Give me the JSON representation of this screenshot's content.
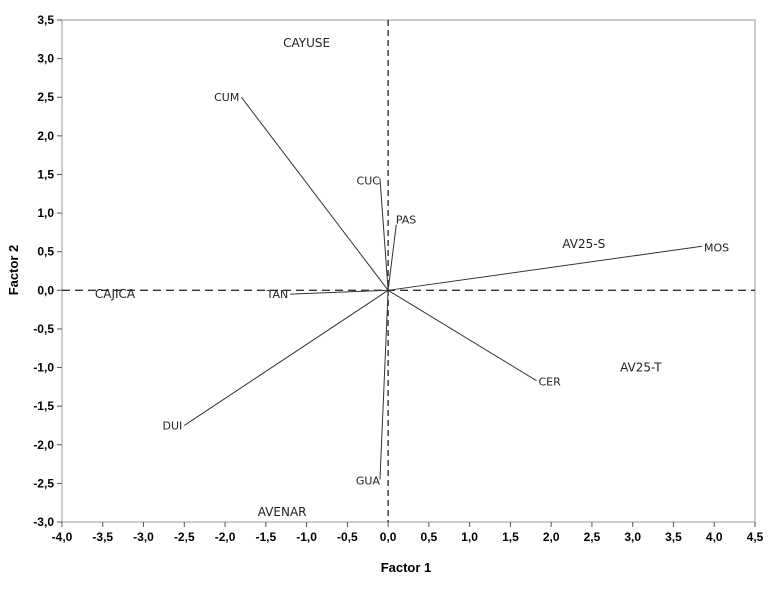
{
  "chart_data": {
    "type": "scatter",
    "title": "",
    "xlabel": "Factor 1",
    "ylabel": "Factor 2",
    "xlim": [
      -4.0,
      4.5
    ],
    "ylim": [
      -3.0,
      3.5
    ],
    "xticks": [
      -4.0,
      -3.5,
      -3.0,
      -2.5,
      -2.0,
      -1.5,
      -1.0,
      -0.5,
      0.0,
      0.5,
      1.0,
      1.5,
      2.0,
      2.5,
      3.0,
      3.5,
      4.0,
      4.5
    ],
    "xtick_labels": [
      "-4,0",
      "-3,5",
      "-3,0",
      "-2,5",
      "-2,0",
      "-1,5",
      "-1,0",
      "-0,5",
      "0,0",
      "0,5",
      "1,0",
      "1,5",
      "2,0",
      "2,5",
      "3,0",
      "3,5",
      "4,0",
      "4,5"
    ],
    "yticks": [
      3.5,
      3.0,
      2.5,
      2.0,
      1.5,
      1.0,
      0.5,
      0.0,
      -0.5,
      -1.0,
      -1.5,
      -2.0,
      -2.5,
      -3.0
    ],
    "ytick_labels": [
      "3,5",
      "3,0",
      "2,5",
      "2,0",
      "1,5",
      "1,0",
      "0,5",
      "0,0",
      "-0,5",
      "-1,0",
      "-1,5",
      "-2,0",
      "-2,5",
      "-3,0"
    ],
    "reference_lines": {
      "x": 0,
      "y": 0,
      "style": "dashed"
    },
    "grid": false,
    "vectors": [
      {
        "label": "CUM",
        "x": -1.8,
        "y": 2.5
      },
      {
        "label": "CUC",
        "x": -0.1,
        "y": 1.45
      },
      {
        "label": "PAS",
        "x": 0.1,
        "y": 0.85
      },
      {
        "label": "MOS",
        "x": 3.85,
        "y": 0.57
      },
      {
        "label": "TAN",
        "x": -1.2,
        "y": -0.05
      },
      {
        "label": "CER",
        "x": 1.82,
        "y": -1.17
      },
      {
        "label": "DUI",
        "x": -2.5,
        "y": -1.75
      },
      {
        "label": "GUA",
        "x": -0.1,
        "y": -2.45
      }
    ],
    "points": [
      {
        "label": "CAYUSE",
        "x": -1.0,
        "y": 3.2
      },
      {
        "label": "AV25-S",
        "x": 2.4,
        "y": 0.6
      },
      {
        "label": "CAJICA",
        "x": -3.35,
        "y": -0.05
      },
      {
        "label": "AV25-T",
        "x": 3.1,
        "y": -1.0
      },
      {
        "label": "AVENAR",
        "x": -1.3,
        "y": -2.87
      }
    ]
  }
}
